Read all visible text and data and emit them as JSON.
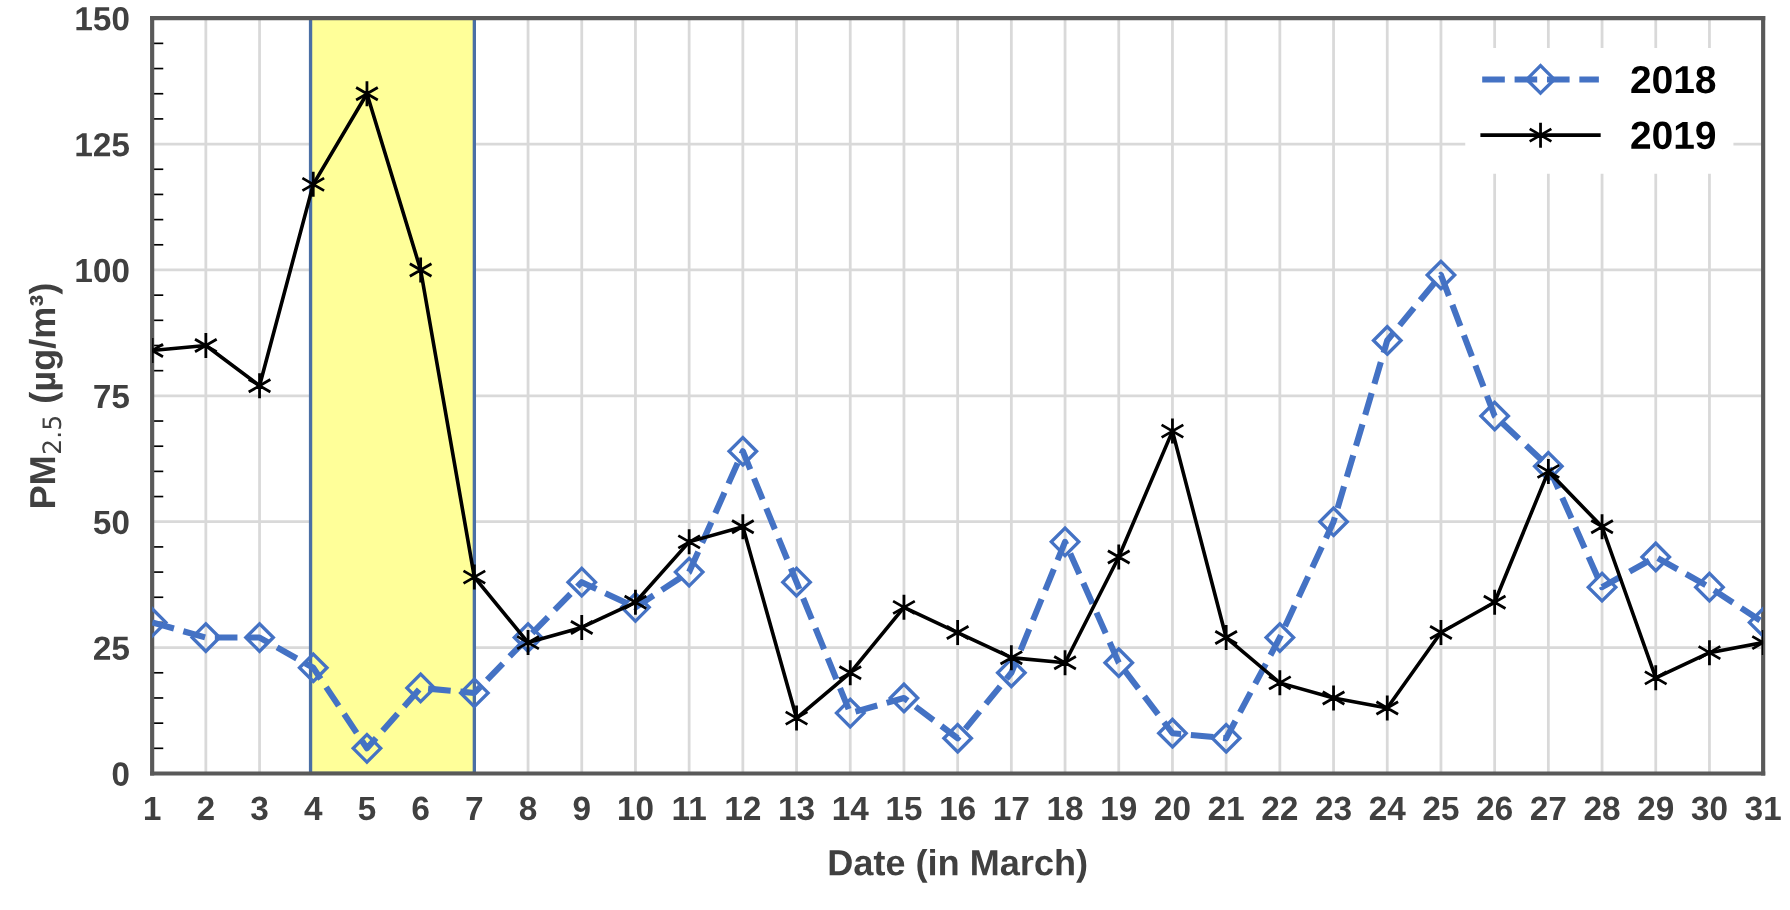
{
  "chart_data": {
    "type": "line",
    "xlabel": "Date (in March)",
    "ylabel": "PM$_{2.5}$ (µg/m³)",
    "x": [
      1,
      2,
      3,
      4,
      5,
      6,
      7,
      8,
      9,
      10,
      11,
      12,
      13,
      14,
      15,
      16,
      17,
      18,
      19,
      20,
      21,
      22,
      23,
      24,
      25,
      26,
      27,
      28,
      29,
      30,
      31
    ],
    "xlim": [
      1,
      31
    ],
    "xticks": [
      1,
      2,
      3,
      4,
      5,
      6,
      7,
      8,
      9,
      10,
      11,
      12,
      13,
      14,
      15,
      16,
      17,
      18,
      19,
      20,
      21,
      22,
      23,
      24,
      25,
      26,
      27,
      28,
      29,
      30,
      31
    ],
    "ylim": [
      0,
      150
    ],
    "yticks": [
      0,
      25,
      50,
      75,
      100,
      125,
      150
    ],
    "grid": true,
    "legend": "top right",
    "bands": [
      {
        "axis": "x",
        "from": 3.95,
        "to": 7.0,
        "color": "#ffff99"
      }
    ],
    "series": [
      {
        "name": "2018",
        "color": "#4472c4",
        "marker": "diamond",
        "line_style": "dashed",
        "values": [
          30,
          27,
          27,
          21,
          5,
          17,
          16,
          27,
          38,
          33,
          40,
          64,
          38,
          12,
          15,
          7,
          20,
          46,
          22,
          8,
          7,
          27,
          50,
          86,
          99,
          71,
          61,
          37,
          43,
          37,
          30
        ]
      },
      {
        "name": "2019",
        "color": "#000000",
        "marker": "cross",
        "line_style": "solid",
        "values": [
          84,
          85,
          77,
          117,
          135,
          100,
          39,
          26,
          29,
          34,
          46,
          49,
          11,
          20,
          33,
          28,
          23,
          22,
          43,
          68,
          27,
          18,
          15,
          13,
          28,
          34,
          60,
          49,
          19,
          24,
          26
        ]
      }
    ]
  }
}
